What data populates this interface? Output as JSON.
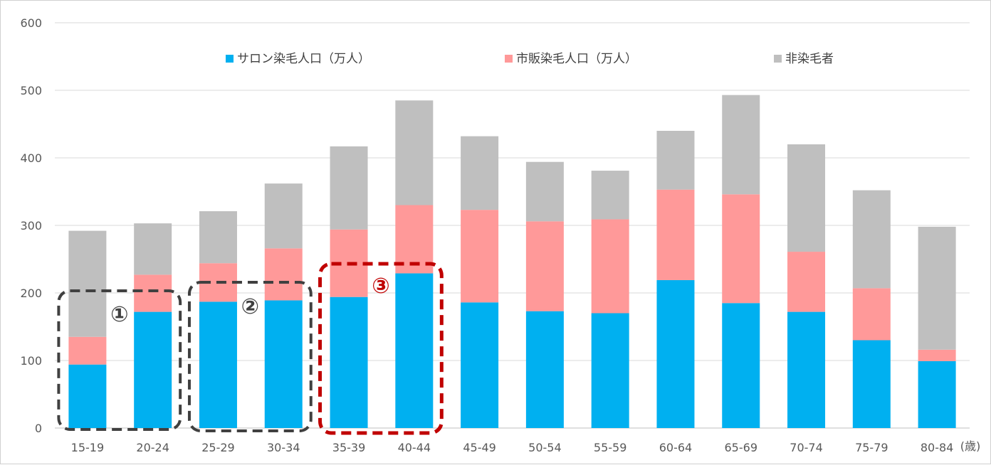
{
  "chart_data": {
    "type": "bar",
    "stacked": true,
    "categories": [
      "15-19",
      "20-24",
      "25-29",
      "30-34",
      "35-39",
      "40-44",
      "45-49",
      "50-54",
      "55-59",
      "60-64",
      "65-69",
      "70-74",
      "75-79",
      "80-84"
    ],
    "x_unit_label": "(歳)",
    "ylim": [
      0,
      600
    ],
    "yticks": [
      0,
      100,
      200,
      300,
      400,
      500,
      600
    ],
    "grid": true,
    "legend_position": "top",
    "series": [
      {
        "name": "サロン染毛人口（万人）",
        "color": "#00B0F0",
        "values": [
          94,
          172,
          187,
          189,
          194,
          229,
          186,
          173,
          170,
          219,
          185,
          172,
          130,
          99
        ]
      },
      {
        "name": "市販染毛人口（万人）",
        "color": "#FF9999",
        "values": [
          41,
          55,
          57,
          77,
          100,
          101,
          137,
          133,
          139,
          134,
          161,
          89,
          77,
          17
        ]
      },
      {
        "name": "非染毛者",
        "color": "#BFBFBF",
        "values": [
          157,
          76,
          77,
          96,
          123,
          155,
          109,
          88,
          72,
          87,
          147,
          159,
          145,
          182
        ]
      }
    ],
    "annotations": [
      {
        "label": "①",
        "categories": [
          "15-19",
          "20-24"
        ],
        "color": "#404040"
      },
      {
        "label": "②",
        "categories": [
          "25-29",
          "30-34"
        ],
        "color": "#404040"
      },
      {
        "label": "③",
        "categories": [
          "35-39",
          "40-44"
        ],
        "color": "#C00000"
      }
    ]
  }
}
